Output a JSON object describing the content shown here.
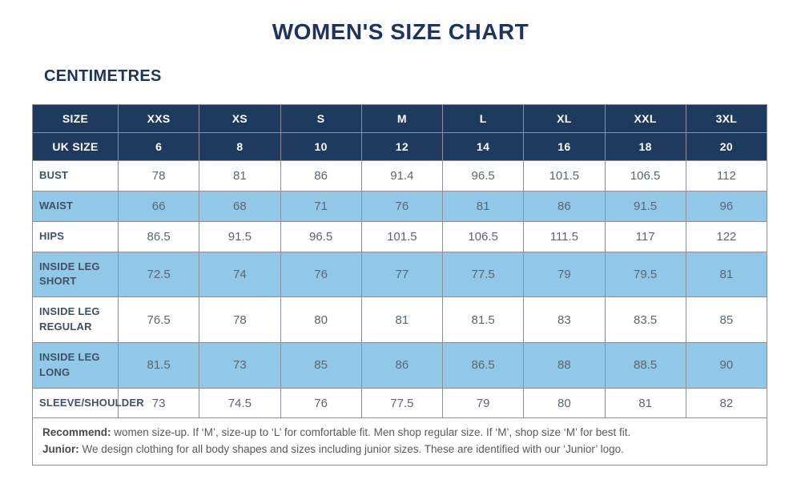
{
  "page": {
    "title": "WOMEN'S SIZE CHART",
    "subtitle": "CENTIMETRES"
  },
  "colors": {
    "header_navy": "#1e3a5f",
    "shaded_blue": "#92c8e7",
    "heading_navy": "#1d3461",
    "border_gray": "#8c9199",
    "cell_text_gray": "#5b6670"
  },
  "chart_data": {
    "type": "table",
    "title": "WOMEN'S SIZE CHART",
    "units": "CENTIMETRES",
    "header_rows": [
      [
        "SIZE",
        "XXS",
        "XS",
        "S",
        "M",
        "L",
        "XL",
        "XXL",
        "3XL"
      ],
      [
        "UK SIZE",
        "6",
        "8",
        "10",
        "12",
        "14",
        "16",
        "18",
        "20"
      ]
    ],
    "rows": [
      {
        "label": "BUST",
        "shaded": false,
        "values": [
          "78",
          "81",
          "86",
          "91.4",
          "96.5",
          "101.5",
          "106.5",
          "112"
        ]
      },
      {
        "label": "WAIST",
        "shaded": true,
        "values": [
          "66",
          "68",
          "71",
          "76",
          "81",
          "86",
          "91.5",
          "96"
        ]
      },
      {
        "label": "HIPS",
        "shaded": false,
        "values": [
          "86.5",
          "91.5",
          "96.5",
          "101.5",
          "106.5",
          "111.5",
          "117",
          "122"
        ]
      },
      {
        "label": "INSIDE LEG SHORT",
        "shaded": true,
        "values": [
          "72.5",
          "74",
          "76",
          "77",
          "77.5",
          "79",
          "79.5",
          "81"
        ]
      },
      {
        "label": "INSIDE LEG REGULAR",
        "shaded": false,
        "values": [
          "76.5",
          "78",
          "80",
          "81",
          "81.5",
          "83",
          "83.5",
          "85"
        ]
      },
      {
        "label": "INSIDE LEG LONG",
        "shaded": true,
        "values": [
          "81.5",
          "73",
          "85",
          "86",
          "86.5",
          "88",
          "88.5",
          "90"
        ]
      },
      {
        "label": "SLEEVE/SHOULDER",
        "shaded": false,
        "values": [
          "73",
          "74.5",
          "76",
          "77.5",
          "79",
          "80",
          "81",
          "82"
        ]
      }
    ],
    "footnotes": [
      {
        "label": "Recommend:",
        "text": " women size-up. If ‘M’, size-up to ‘L’ for comfortable fit. Men shop regular size. If ‘M’, shop size ‘M’ for best fit."
      },
      {
        "label": "Junior:",
        "text": " We design clothing for all body shapes and sizes including junior sizes. These are identified with our ‘Junior’ logo."
      }
    ]
  }
}
